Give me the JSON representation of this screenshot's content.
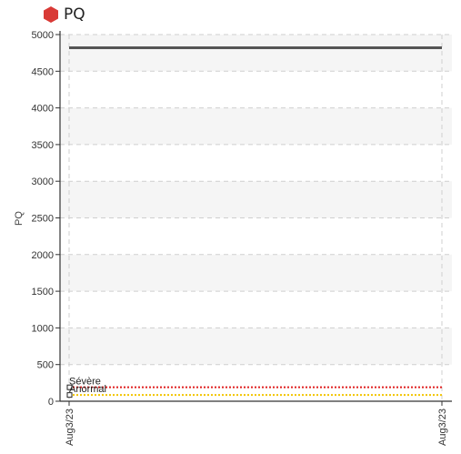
{
  "header": {
    "title": "PQ",
    "status_color": "#d93a36"
  },
  "chart_data": {
    "type": "line",
    "title": "PQ",
    "xlabel": "",
    "ylabel": "PQ",
    "ylim": [
      0,
      5000
    ],
    "yticks": [
      0,
      500,
      1000,
      1500,
      2000,
      2500,
      3000,
      3500,
      4000,
      4500,
      5000
    ],
    "x": [
      "Aug3/23",
      "Aug3/23"
    ],
    "grid": true,
    "series": [
      {
        "name": "",
        "values": [
          4820,
          4820
        ],
        "color": "#555555",
        "style": "solid"
      }
    ],
    "thresholds": [
      {
        "label": "Sévère",
        "value": 190,
        "color": "#e02020",
        "style": "dotted"
      },
      {
        "label": "Anormal",
        "value": 85,
        "color": "#f2c400",
        "style": "dotted"
      }
    ]
  }
}
